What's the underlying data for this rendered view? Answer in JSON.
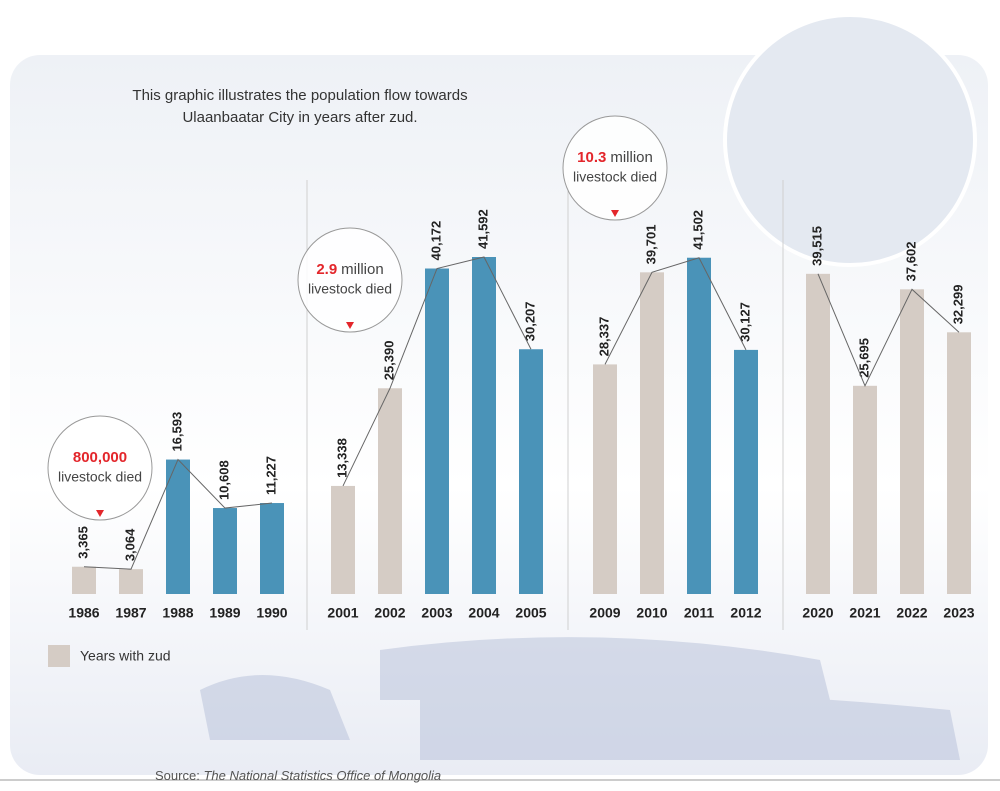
{
  "chart_data": {
    "type": "bar",
    "title": "This graphic illustrates the population flow towards Ulaanbaatar City in years after zud.",
    "groups": [
      {
        "categories": [
          "1986",
          "1987",
          "1988",
          "1989",
          "1990"
        ],
        "values": [
          3365,
          3064,
          16593,
          10608,
          11227
        ],
        "value_labels": [
          "3,365",
          "3,064",
          "16,593",
          "10,608",
          "11,227"
        ],
        "colors": [
          "#d5ccc5",
          "#d5ccc5",
          "#4a93b8",
          "#4a93b8",
          "#4a93b8"
        ],
        "annotation": {
          "highlight": "800,000",
          "text": "livestock died"
        }
      },
      {
        "categories": [
          "2001",
          "2002",
          "2003",
          "2004",
          "2005"
        ],
        "values": [
          13338,
          25390,
          40172,
          41592,
          30207
        ],
        "value_labels": [
          "13,338",
          "25,390",
          "40,172",
          "41,592",
          "30,207"
        ],
        "colors": [
          "#d5ccc5",
          "#d5ccc5",
          "#4a93b8",
          "#4a93b8",
          "#4a93b8"
        ],
        "annotation": {
          "highlight": "2.9",
          "unit": "million",
          "text": "livestock died"
        }
      },
      {
        "categories": [
          "2009",
          "2010",
          "2011",
          "2012"
        ],
        "values": [
          28337,
          39701,
          41502,
          30127
        ],
        "value_labels": [
          "28,337",
          "39,701",
          "41,502",
          "30,127"
        ],
        "colors": [
          "#d5ccc5",
          "#d5ccc5",
          "#4a93b8",
          "#4a93b8"
        ],
        "annotation": {
          "highlight": "10.3",
          "unit": "million",
          "text": "livestock died"
        }
      },
      {
        "categories": [
          "2020",
          "2021",
          "2022",
          "2023"
        ],
        "values": [
          39515,
          25695,
          37602,
          32299
        ],
        "value_labels": [
          "39,515",
          "25,695",
          "37,602",
          "32,299"
        ],
        "colors": [
          "#d5ccc5",
          "#d5ccc5",
          "#d5ccc5",
          "#d5ccc5"
        ]
      }
    ],
    "legend": {
      "label": "Years with zud",
      "color": "#d5ccc5"
    },
    "source": {
      "prefix": "Source:",
      "name": "The National Statistics Office of Mongolia"
    }
  }
}
